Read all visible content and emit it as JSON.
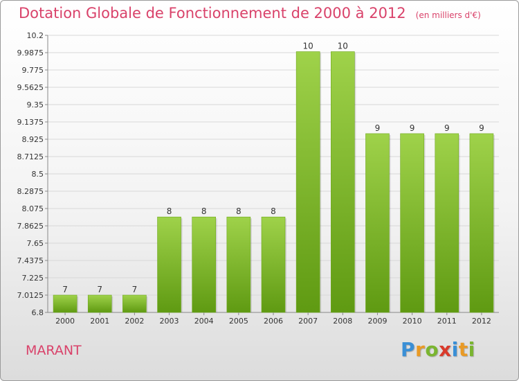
{
  "title": "Dotation Globale de Fonctionnement de 2000 à 2012",
  "subtitle": "(en milliers d'€)",
  "commune": "MARANT",
  "logo": {
    "letters": [
      {
        "char": "P",
        "color": "#3a8fd6"
      },
      {
        "char": "r",
        "color": "#e99a25"
      },
      {
        "char": "o",
        "color": "#7ab530"
      },
      {
        "char": "x",
        "color": "#d93a2b"
      },
      {
        "char": "i",
        "color": "#3a8fd6"
      },
      {
        "char": "t",
        "color": "#e99a25"
      },
      {
        "char": "i",
        "color": "#7ab530"
      }
    ]
  },
  "chart_data": {
    "type": "bar",
    "categories": [
      "2000",
      "2001",
      "2002",
      "2003",
      "2004",
      "2005",
      "2006",
      "2007",
      "2008",
      "2009",
      "2010",
      "2011",
      "2012"
    ],
    "values": [
      7,
      7,
      7,
      8,
      8,
      8,
      8,
      10,
      10,
      9,
      9,
      9,
      9
    ],
    "bar_top_values": [
      7.0125,
      7.0125,
      7.0125,
      7.9713,
      7.9713,
      7.9713,
      7.9713,
      10.0,
      10.0,
      8.9938,
      8.9938,
      8.9938,
      8.9938
    ],
    "ylim": [
      6.8,
      10.2
    ],
    "yticks": [
      "10.2",
      "9.9875",
      "9.775",
      "9.5625",
      "9.35",
      "9.1375",
      "8.925",
      "8.7125",
      "8.5",
      "8.2875",
      "8.075",
      "7.8625",
      "7.65",
      "7.4375",
      "7.225",
      "7.0125",
      "6.8"
    ],
    "grid": true,
    "colors": {
      "bar_light": "#9fd24a",
      "bar_dark": "#5f9a12",
      "grid": "#d8d8d8"
    }
  }
}
